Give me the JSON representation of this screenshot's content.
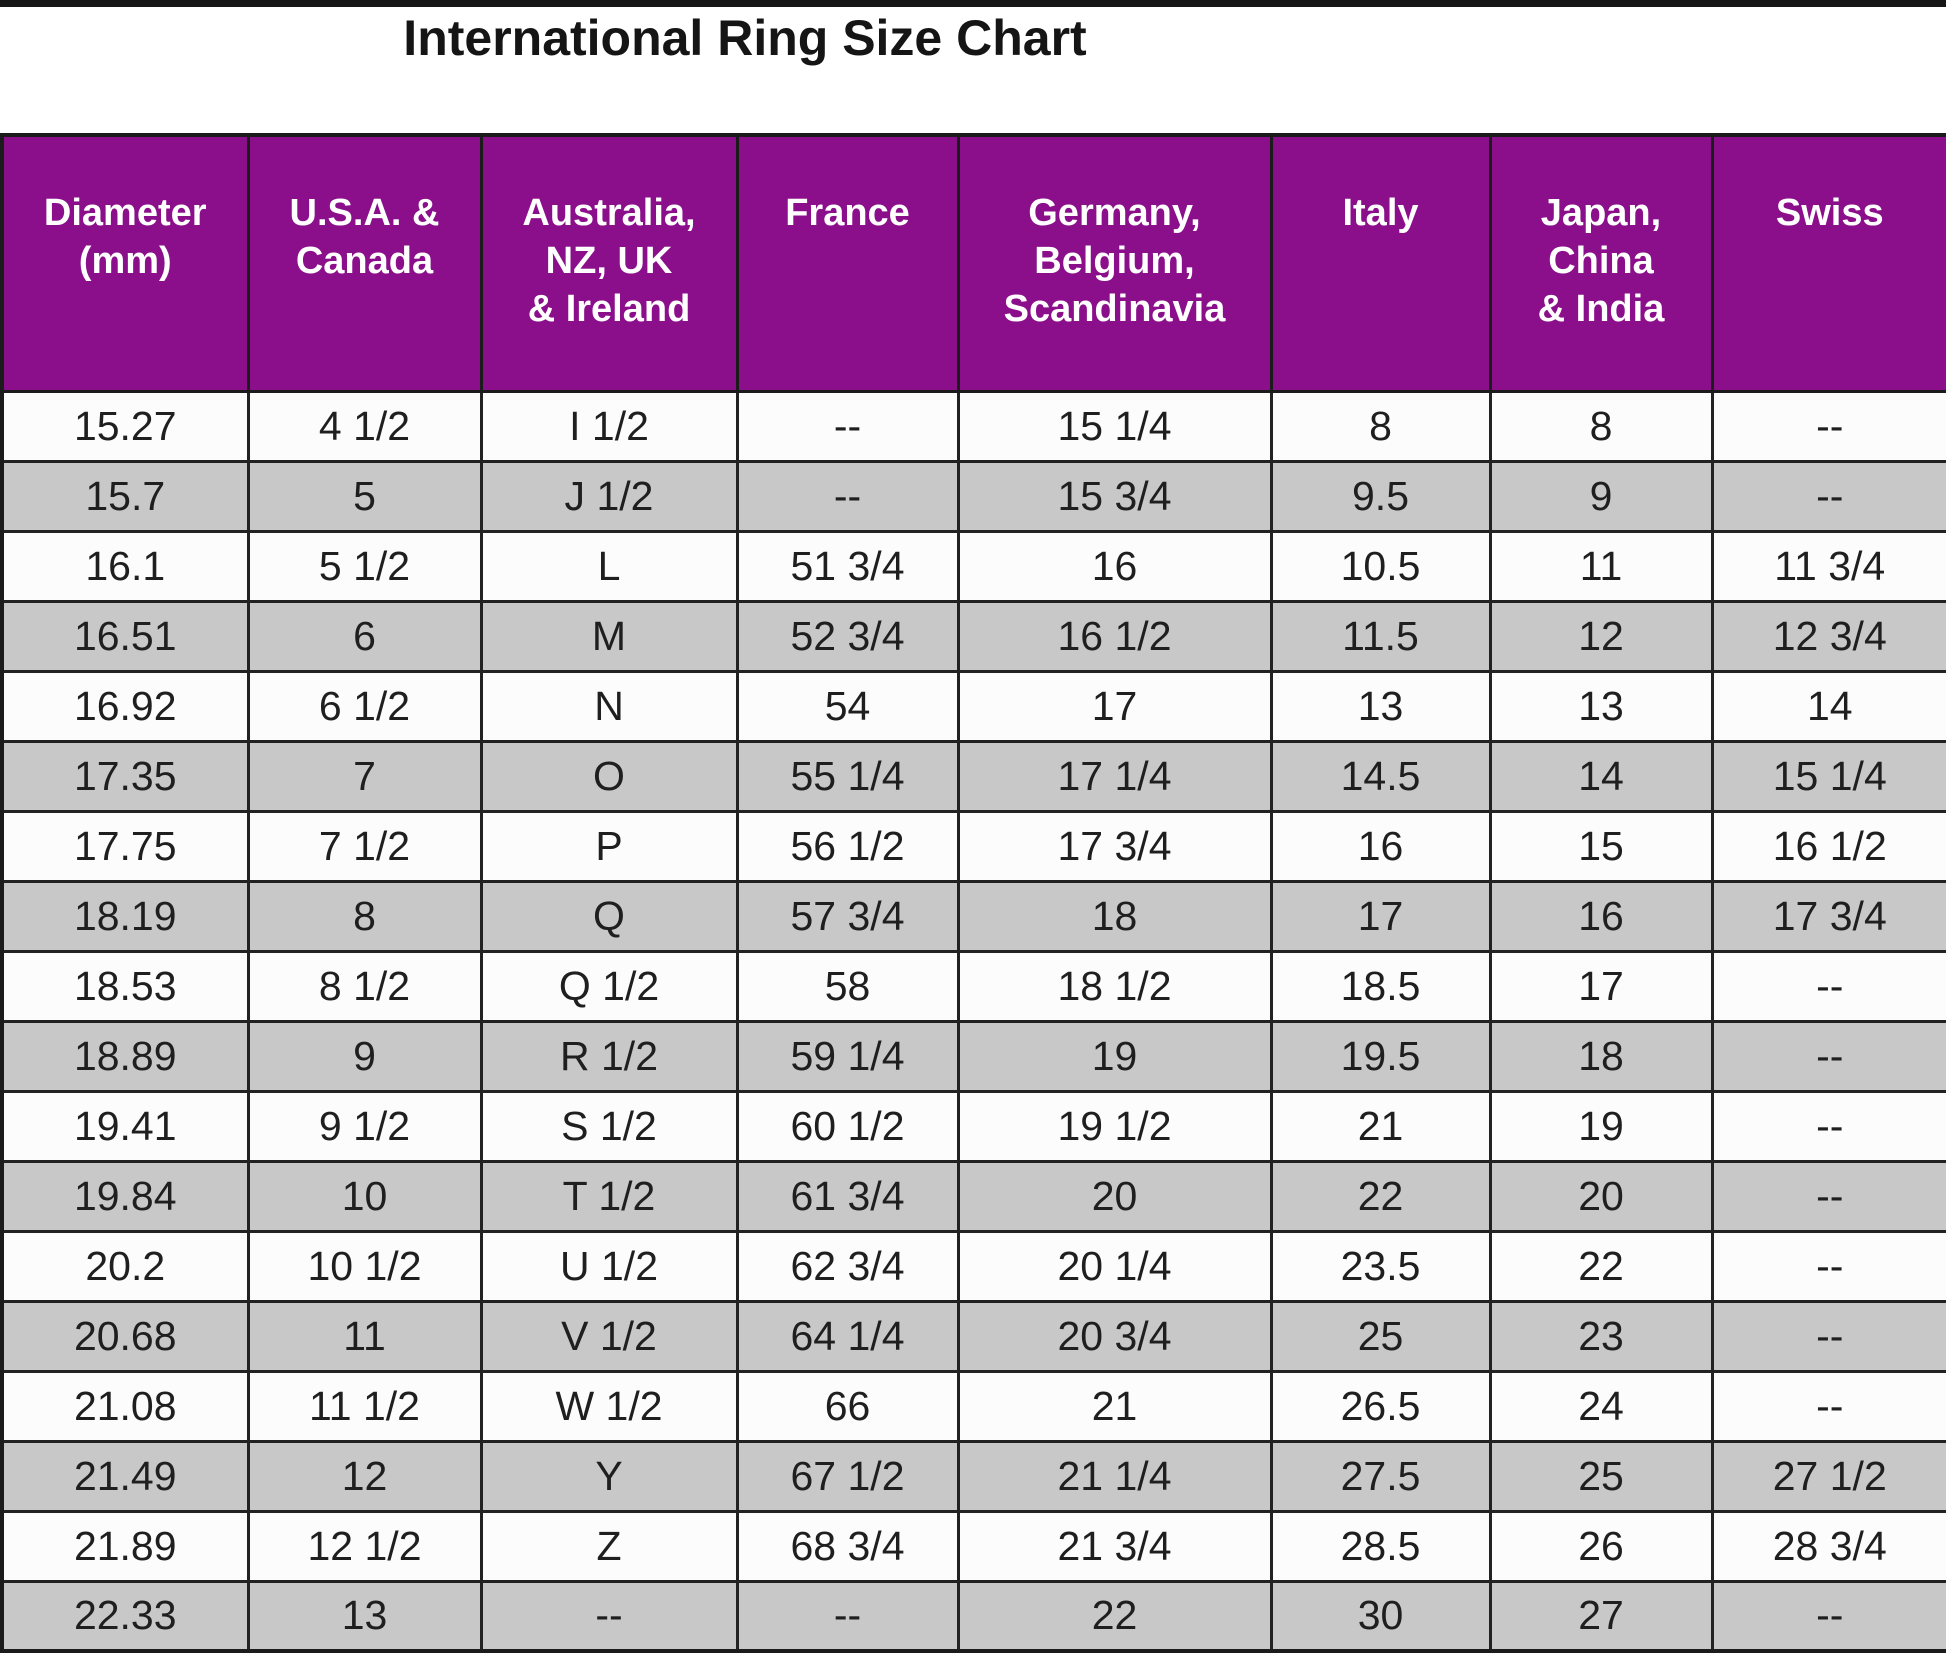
{
  "title_block": {
    "title": "International Ring Size Chart"
  },
  "colors": {
    "header_bg": "#8B0F8B",
    "header_text": "#FFFFFF",
    "row_bg": "#FCFCFC",
    "row_alt_bg": "#C8C8C8",
    "border": "#1B1B1B"
  },
  "chart_data": {
    "type": "table",
    "title": "International Ring Size Chart",
    "columns": [
      "Diameter\n(mm)",
      "U.S.A. &\nCanada",
      "Australia,\nNZ, UK\n& Ireland",
      "France",
      "Germany,\nBelgium,\nScandinavia",
      "Italy",
      "Japan,\nChina\n& India",
      "Swiss"
    ],
    "rows": [
      [
        "15.27",
        "4 1/2",
        "I 1/2",
        "--",
        "15 1/4",
        "8",
        "8",
        "--"
      ],
      [
        "15.7",
        "5",
        "J 1/2",
        "--",
        "15 3/4",
        "9.5",
        "9",
        "--"
      ],
      [
        "16.1",
        "5 1/2",
        "L",
        "51 3/4",
        "16",
        "10.5",
        "11",
        "11 3/4"
      ],
      [
        "16.51",
        "6",
        "M",
        "52 3/4",
        "16 1/2",
        "11.5",
        "12",
        "12 3/4"
      ],
      [
        "16.92",
        "6 1/2",
        "N",
        "54",
        "17",
        "13",
        "13",
        "14"
      ],
      [
        "17.35",
        "7",
        "O",
        "55 1/4",
        "17 1/4",
        "14.5",
        "14",
        "15 1/4"
      ],
      [
        "17.75",
        "7 1/2",
        "P",
        "56 1/2",
        "17 3/4",
        "16",
        "15",
        "16 1/2"
      ],
      [
        "18.19",
        "8",
        "Q",
        "57 3/4",
        "18",
        "17",
        "16",
        "17 3/4"
      ],
      [
        "18.53",
        "8 1/2",
        "Q 1/2",
        "58",
        "18 1/2",
        "18.5",
        "17",
        "--"
      ],
      [
        "18.89",
        "9",
        "R 1/2",
        "59 1/4",
        "19",
        "19.5",
        "18",
        "--"
      ],
      [
        "19.41",
        "9 1/2",
        "S 1/2",
        "60 1/2",
        "19 1/2",
        "21",
        "19",
        "--"
      ],
      [
        "19.84",
        "10",
        "T 1/2",
        "61 3/4",
        "20",
        "22",
        "20",
        "--"
      ],
      [
        "20.2",
        "10 1/2",
        "U 1/2",
        "62 3/4",
        "20 1/4",
        "23.5",
        "22",
        "--"
      ],
      [
        "20.68",
        "11",
        "V 1/2",
        "64 1/4",
        "20 3/4",
        "25",
        "23",
        "--"
      ],
      [
        "21.08",
        "11 1/2",
        "W 1/2",
        "66",
        "21",
        "26.5",
        "24",
        "--"
      ],
      [
        "21.49",
        "12",
        "Y",
        "67 1/2",
        "21 1/4",
        "27.5",
        "25",
        "27 1/2"
      ],
      [
        "21.89",
        "12 1/2",
        "Z",
        "68 3/4",
        "21 3/4",
        "28.5",
        "26",
        "28 3/4"
      ],
      [
        "22.33",
        "13",
        "--",
        "--",
        "22",
        "30",
        "27",
        "--"
      ]
    ]
  }
}
